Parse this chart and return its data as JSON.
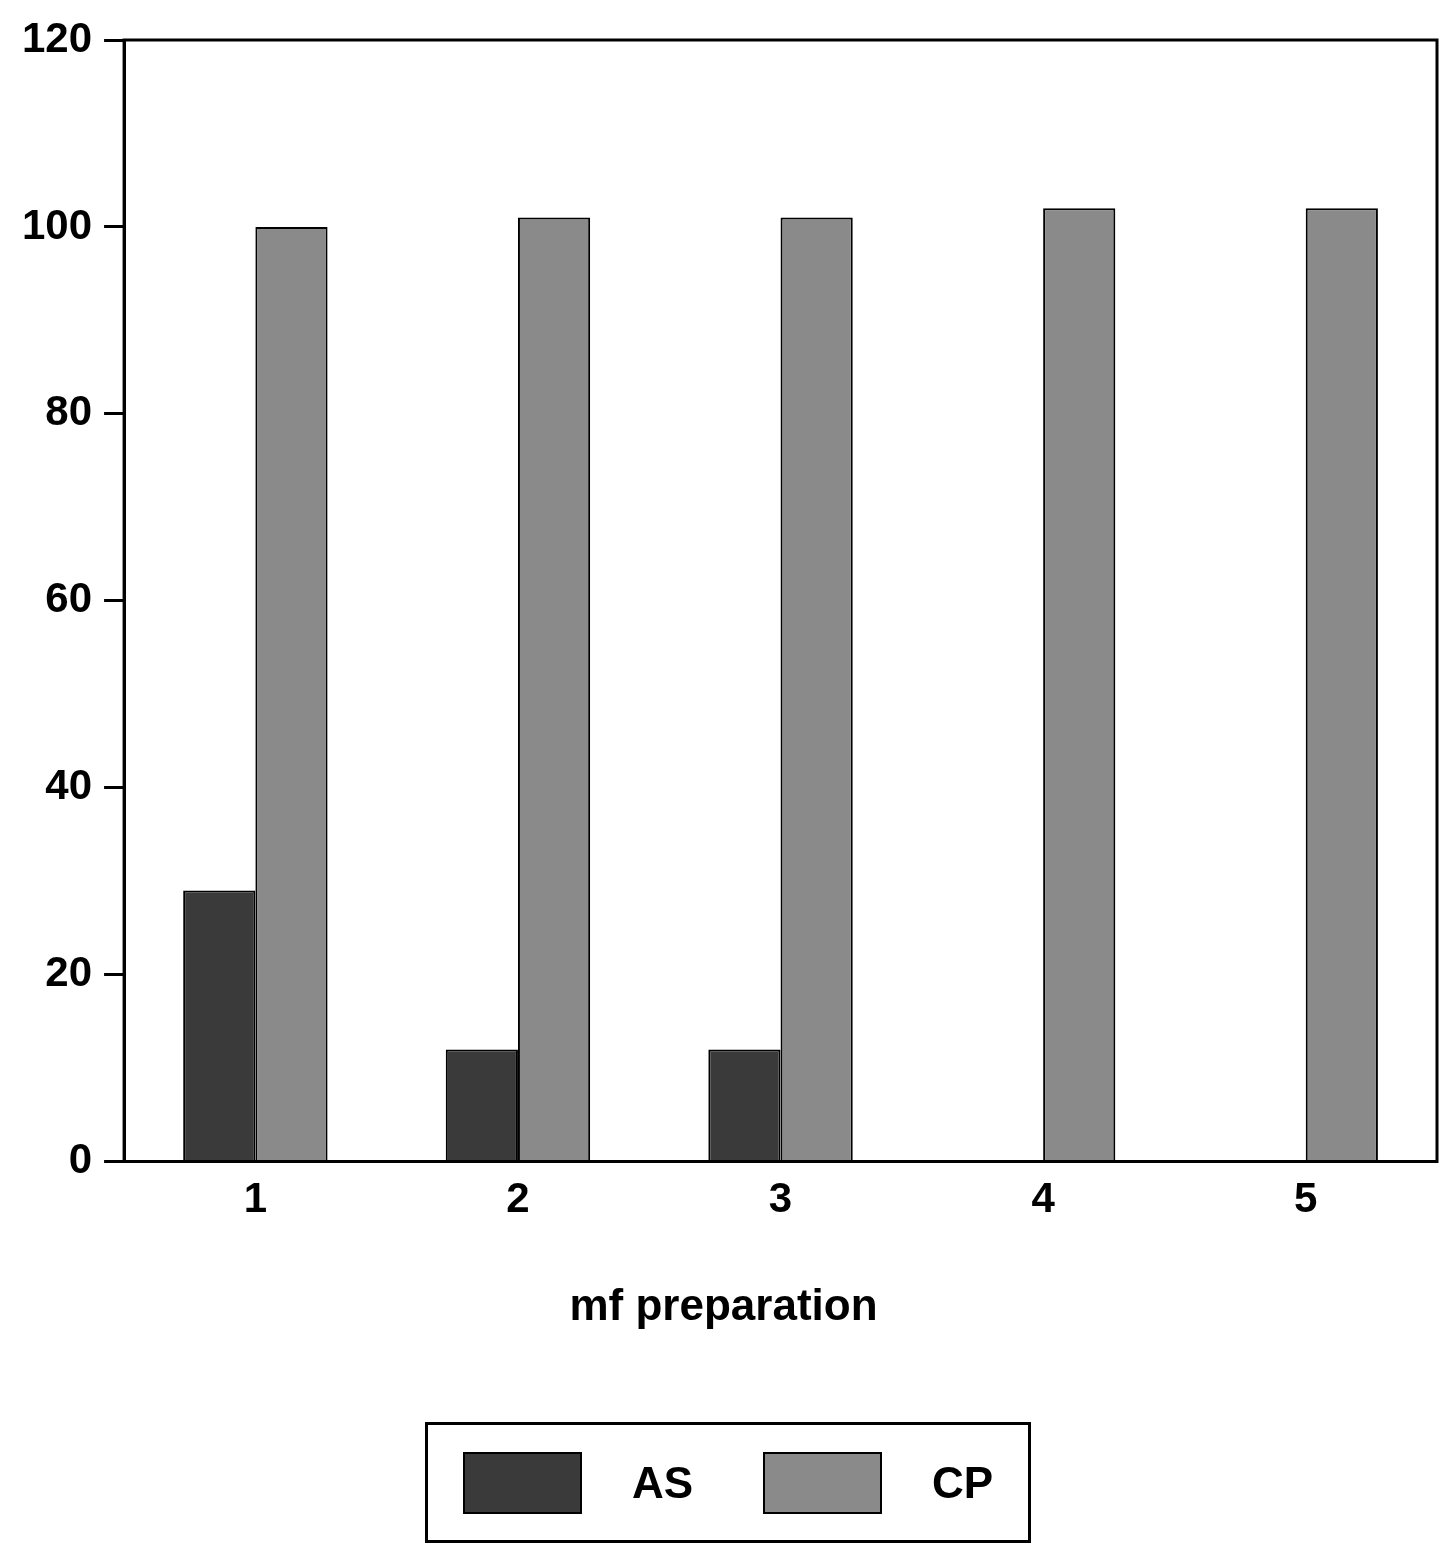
{
  "chart_data": {
    "type": "bar",
    "xlabel": "mf preparation",
    "categories": [
      "1",
      "2",
      "3",
      "4",
      "5"
    ],
    "series": [
      {
        "name": "AS",
        "color": "#3a3a3a",
        "values": [
          29,
          12,
          12,
          0,
          0
        ]
      },
      {
        "name": "CP",
        "color": "#8a8a8a",
        "values": [
          100,
          101,
          101,
          102,
          102
        ]
      }
    ],
    "ylim": [
      0,
      120
    ],
    "yticks": [
      0,
      20,
      40,
      60,
      80,
      100,
      120
    ],
    "grid": false,
    "legend": "bottom"
  }
}
